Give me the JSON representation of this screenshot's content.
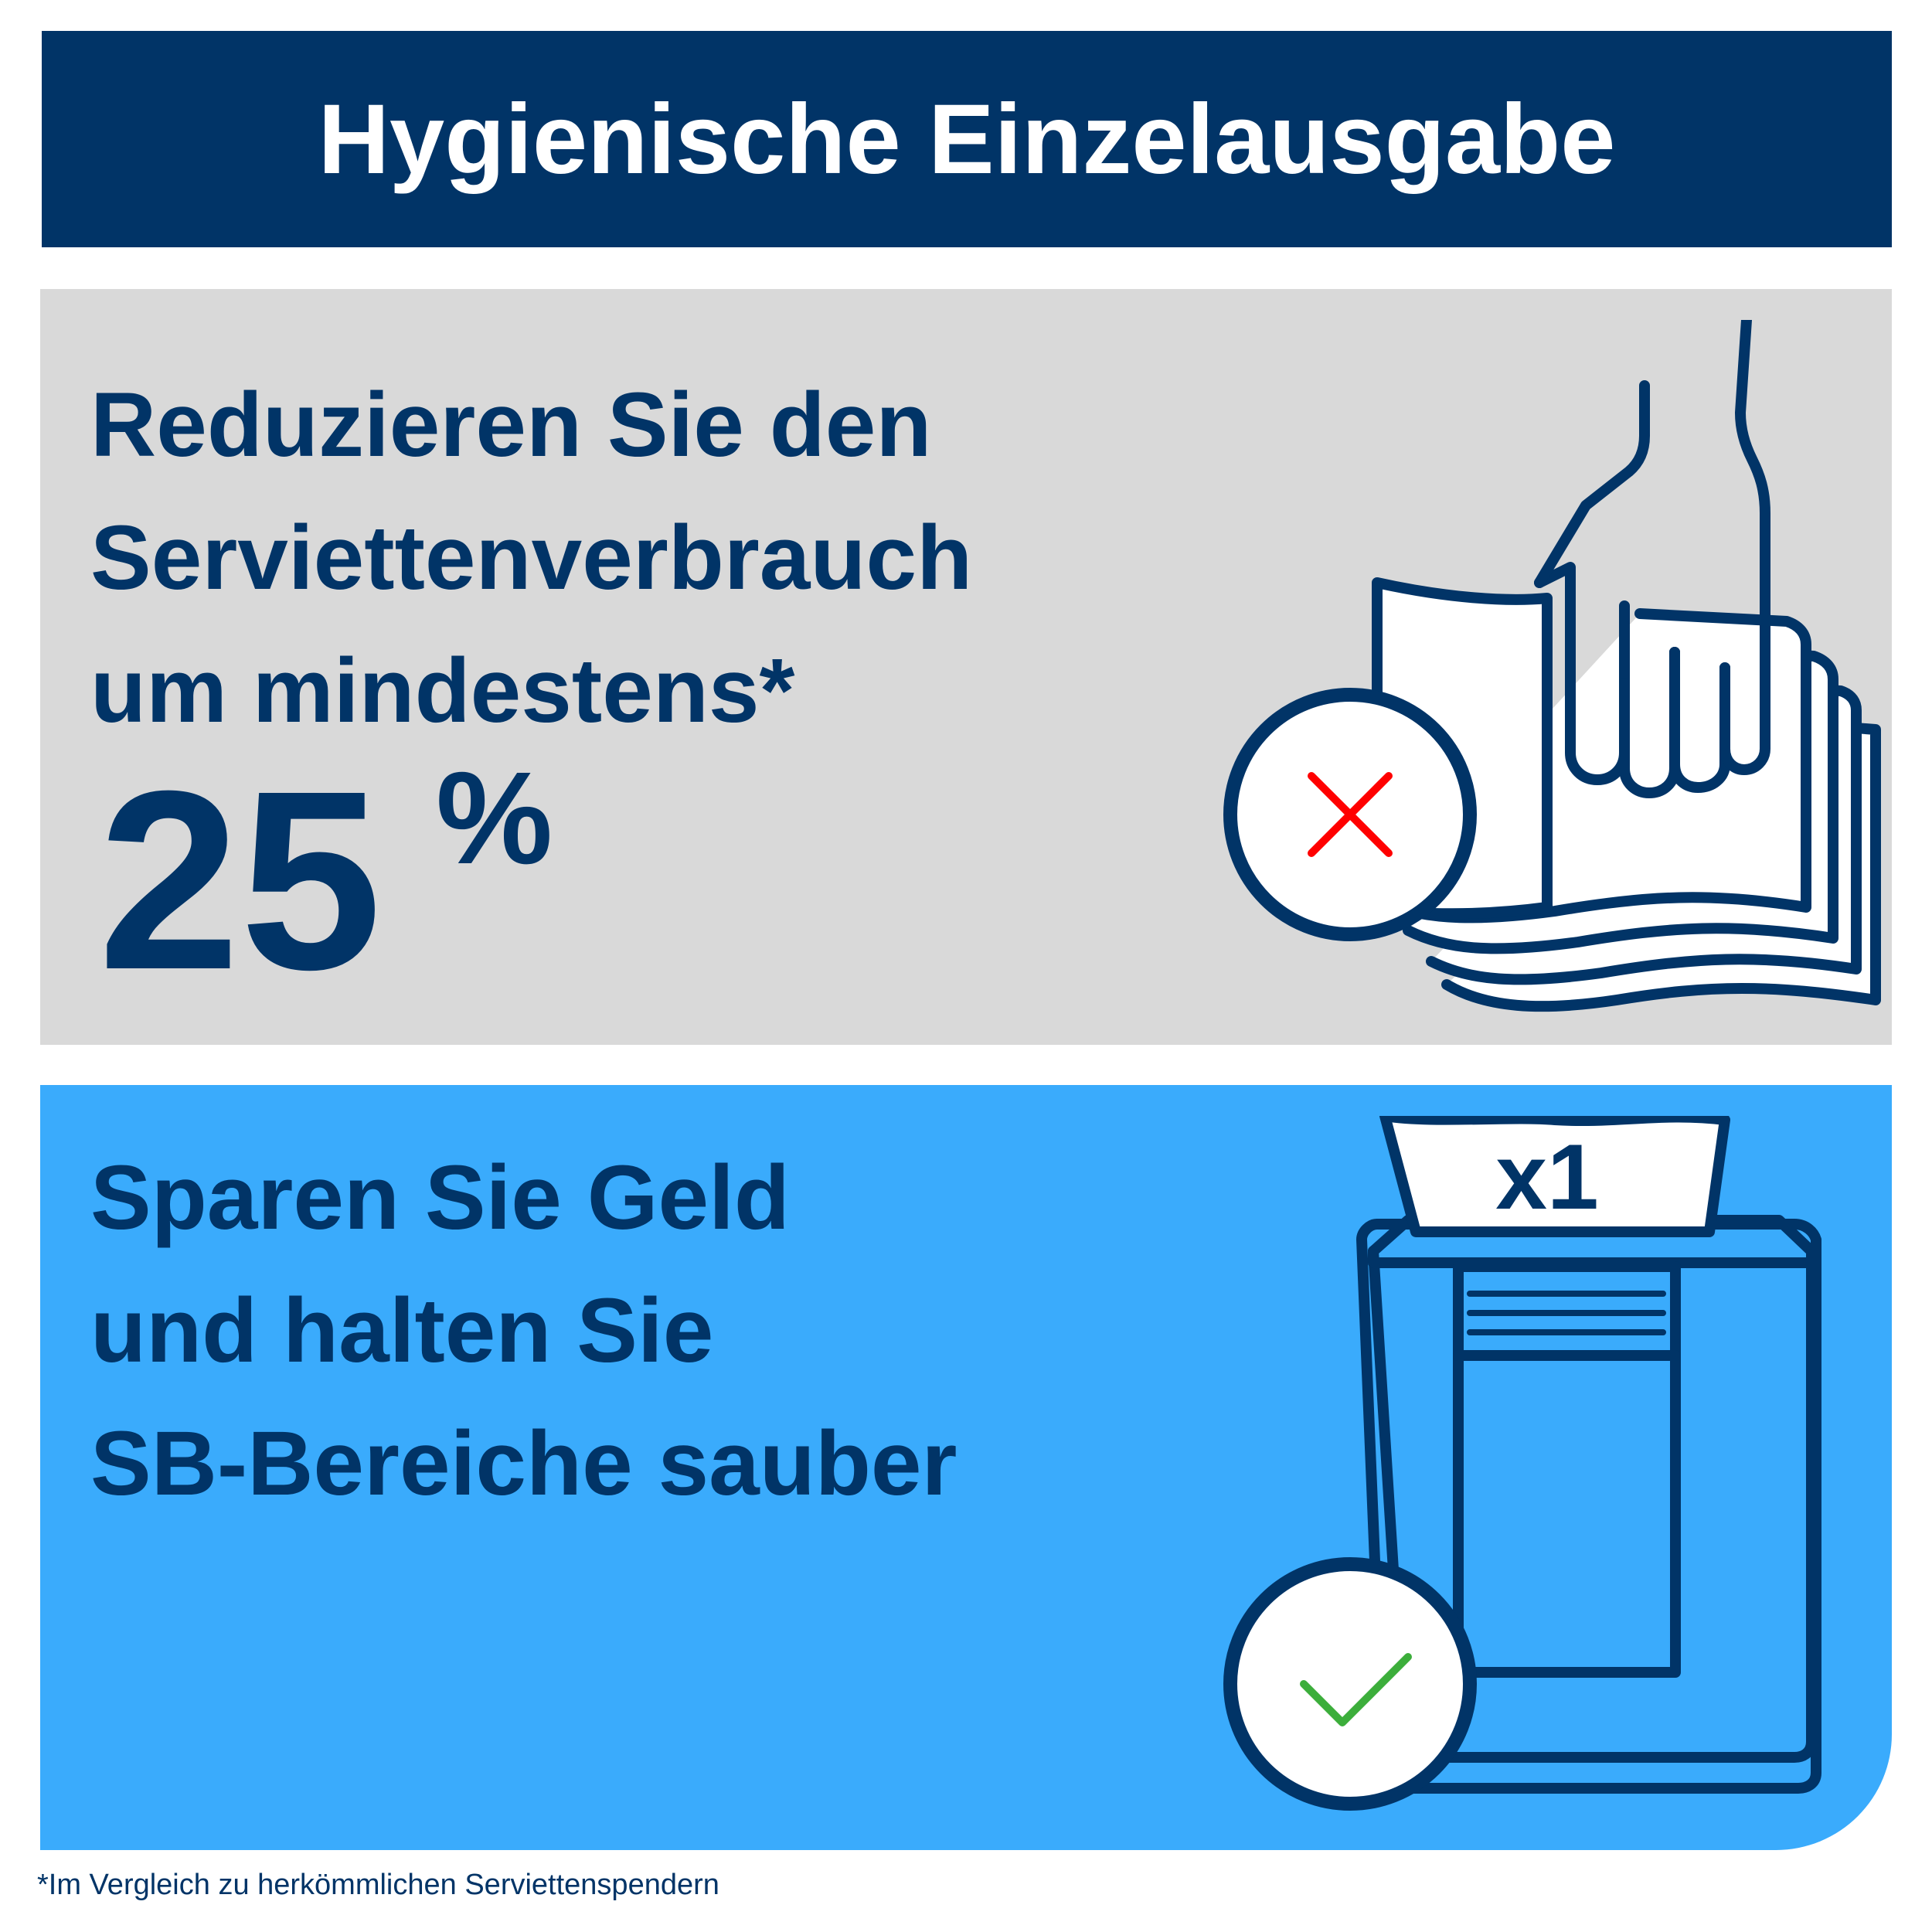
{
  "header": {
    "title": "Hygienische Einzelausgabe"
  },
  "panel_top": {
    "headline_lines": [
      "Reduzieren Sie den",
      "Serviettenverbrauch",
      "um mindestens*"
    ],
    "stat_value": "25",
    "stat_unit": "%",
    "icon": "hand-grabbing-napkin-stack-icon",
    "status_icon": "red-cross-icon",
    "status_color": "#ff0000"
  },
  "panel_bottom": {
    "headline_lines": [
      "Sparen Sie Geld",
      "und halten Sie",
      "SB-Bereiche sauber"
    ],
    "dispenser_label": "x1",
    "icon": "single-napkin-dispenser-icon",
    "status_icon": "green-check-icon",
    "status_color": "#3cae3b"
  },
  "footnote": "*Im Vergleich zu herkömmlichen Serviettenspendern",
  "colors": {
    "navy": "#013467",
    "grey_panel": "#d9d9d9",
    "blue_panel": "#3aabfc"
  }
}
